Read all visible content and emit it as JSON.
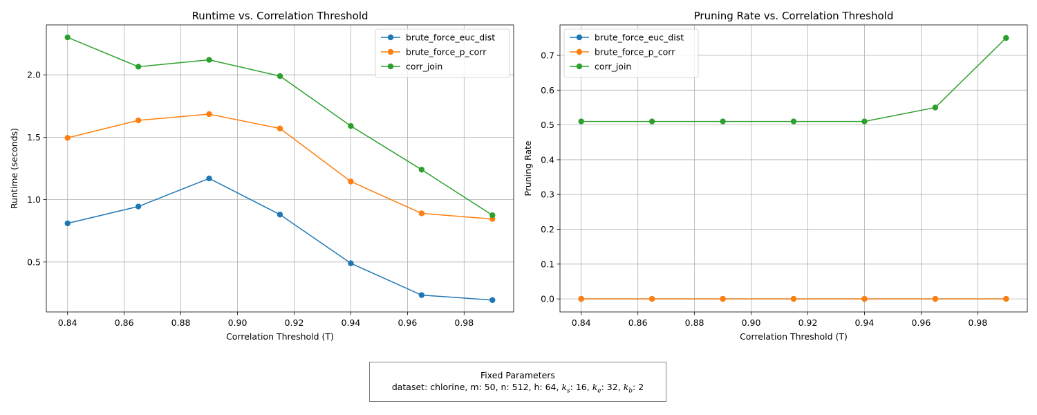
{
  "chart_data": [
    {
      "type": "line",
      "title": "Runtime vs. Correlation Threshold",
      "xlabel": "Correlation Threshold (T)",
      "ylabel": "Runtime (seconds)",
      "x": [
        0.84,
        0.865,
        0.89,
        0.915,
        0.94,
        0.965,
        0.99
      ],
      "xlim": [
        0.8325,
        0.9975
      ],
      "ylim": [
        0.1,
        2.4
      ],
      "xticks": [
        0.84,
        0.86,
        0.88,
        0.9,
        0.92,
        0.94,
        0.96,
        0.98
      ],
      "xtick_labels": [
        "0.84",
        "0.86",
        "0.88",
        "0.90",
        "0.92",
        "0.94",
        "0.96",
        "0.98"
      ],
      "yticks": [
        0.5,
        1.0,
        1.5,
        2.0
      ],
      "ytick_labels": [
        "0.5",
        "1.0",
        "1.5",
        "2.0"
      ],
      "grid": true,
      "legend_position": "top-right",
      "series": [
        {
          "name": "brute_force_euc_dist",
          "color": "#1f77b4",
          "values": [
            0.81,
            0.945,
            1.17,
            0.88,
            0.49,
            0.235,
            0.195
          ]
        },
        {
          "name": "brute_force_p_corr",
          "color": "#ff7f0e",
          "values": [
            1.495,
            1.635,
            1.685,
            1.57,
            1.145,
            0.89,
            0.845
          ]
        },
        {
          "name": "corr_join",
          "color": "#2ca02c",
          "values": [
            2.3,
            2.065,
            2.12,
            1.99,
            1.59,
            1.24,
            0.875
          ]
        }
      ]
    },
    {
      "type": "line",
      "title": "Pruning Rate vs. Correlation Threshold",
      "xlabel": "Correlation Threshold (T)",
      "ylabel": "Pruning Rate",
      "x": [
        0.84,
        0.865,
        0.89,
        0.915,
        0.94,
        0.965,
        0.99
      ],
      "xlim": [
        0.8325,
        0.9975
      ],
      "ylim": [
        -0.0375,
        0.7875
      ],
      "xticks": [
        0.84,
        0.86,
        0.88,
        0.9,
        0.92,
        0.94,
        0.96,
        0.98
      ],
      "xtick_labels": [
        "0.84",
        "0.86",
        "0.88",
        "0.90",
        "0.92",
        "0.94",
        "0.96",
        "0.98"
      ],
      "yticks": [
        0.0,
        0.1,
        0.2,
        0.3,
        0.4,
        0.5,
        0.6,
        0.7
      ],
      "ytick_labels": [
        "0.0",
        "0.1",
        "0.2",
        "0.3",
        "0.4",
        "0.5",
        "0.6",
        "0.7"
      ],
      "grid": true,
      "legend_position": "top-left",
      "series": [
        {
          "name": "brute_force_euc_dist",
          "color": "#1f77b4",
          "values": [
            0,
            0,
            0,
            0,
            0,
            0,
            0
          ]
        },
        {
          "name": "brute_force_p_corr",
          "color": "#ff7f0e",
          "values": [
            0,
            0,
            0,
            0,
            0,
            0,
            0
          ]
        },
        {
          "name": "corr_join",
          "color": "#2ca02c",
          "values": [
            0.51,
            0.51,
            0.51,
            0.51,
            0.51,
            0.55,
            0.75
          ]
        }
      ]
    }
  ],
  "fixed_parameters": {
    "title": "Fixed Parameters",
    "dataset_label": "dataset: chlorine, m: 50, n: 512, h: 64,",
    "ks_name": "k",
    "ks_sub": "s",
    "ks_value": ": 16,",
    "ke_name": "k",
    "ke_sub": "e",
    "ke_value": ": 32,",
    "kb_name": "k",
    "kb_sub": "b",
    "kb_value": ": 2"
  }
}
